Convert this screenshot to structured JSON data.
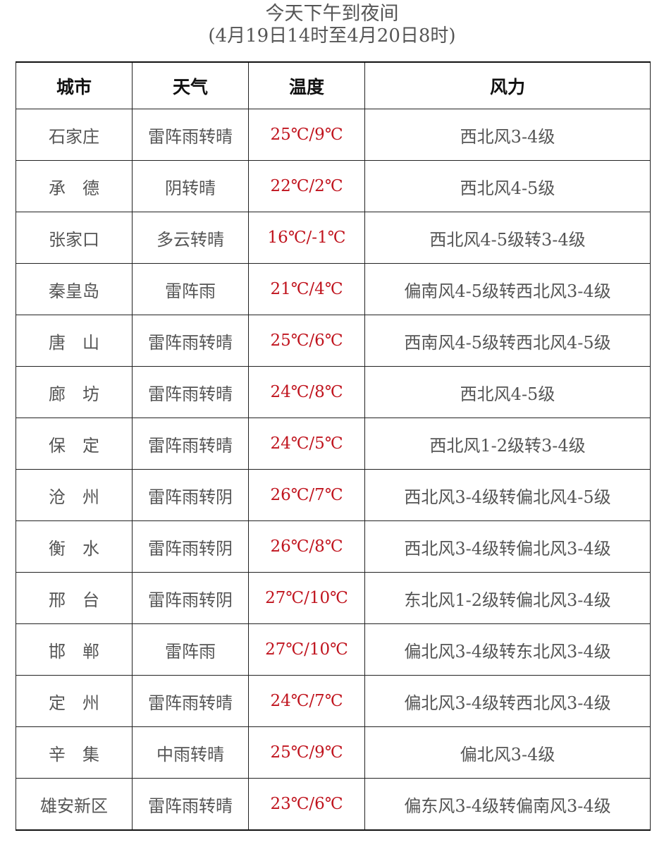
{
  "title": "今天下午到夜间",
  "subtitle": "(4月19日14时至4月20日8时)",
  "colors": {
    "temperature": "#c0141e",
    "text": "#555555"
  },
  "headers": [
    "城市",
    "天气",
    "温度",
    "风力"
  ],
  "rows": [
    {
      "city": "石家庄",
      "weather": "雷阵雨转晴",
      "temp": "25℃/9℃",
      "wind": "西北风3-4级"
    },
    {
      "city": "承　德",
      "weather": "阴转晴",
      "temp": "22℃/2℃",
      "wind": "西北风4-5级"
    },
    {
      "city": "张家口",
      "weather": "多云转晴",
      "temp": "16℃/-1℃",
      "wind": "西北风4-5级转3-4级"
    },
    {
      "city": "秦皇岛",
      "weather": "雷阵雨",
      "temp": "21℃/4℃",
      "wind": "偏南风4-5级转西北风3-4级"
    },
    {
      "city": "唐　山",
      "weather": "雷阵雨转晴",
      "temp": "25℃/6℃",
      "wind": "西南风4-5级转西北风4-5级"
    },
    {
      "city": "廊　坊",
      "weather": "雷阵雨转晴",
      "temp": "24℃/8℃",
      "wind": "西北风4-5级"
    },
    {
      "city": "保　定",
      "weather": "雷阵雨转晴",
      "temp": "24℃/5℃",
      "wind": "西北风1-2级转3-4级"
    },
    {
      "city": "沧　州",
      "weather": "雷阵雨转阴",
      "temp": "26℃/7℃",
      "wind": "西北风3-4级转偏北风4-5级"
    },
    {
      "city": "衡　水",
      "weather": "雷阵雨转阴",
      "temp": "26℃/8℃",
      "wind": "西北风3-4级转偏北风3-4级"
    },
    {
      "city": "邢　台",
      "weather": "雷阵雨转阴",
      "temp": "27℃/10℃",
      "wind": "东北风1-2级转偏北风3-4级"
    },
    {
      "city": "邯　郸",
      "weather": "雷阵雨",
      "temp": "27℃/10℃",
      "wind": "偏北风3-4级转东北风3-4级"
    },
    {
      "city": "定　州",
      "weather": "雷阵雨转晴",
      "temp": "24℃/7℃",
      "wind": "偏北风3-4级转西北风3-4级"
    },
    {
      "city": "辛　集",
      "weather": "中雨转晴",
      "temp": "25℃/9℃",
      "wind": "偏北风3-4级"
    },
    {
      "city": "雄安新区",
      "weather": "雷阵雨转晴",
      "temp": "23℃/6℃",
      "wind": "偏东风3-4级转偏南风3-4级"
    }
  ]
}
